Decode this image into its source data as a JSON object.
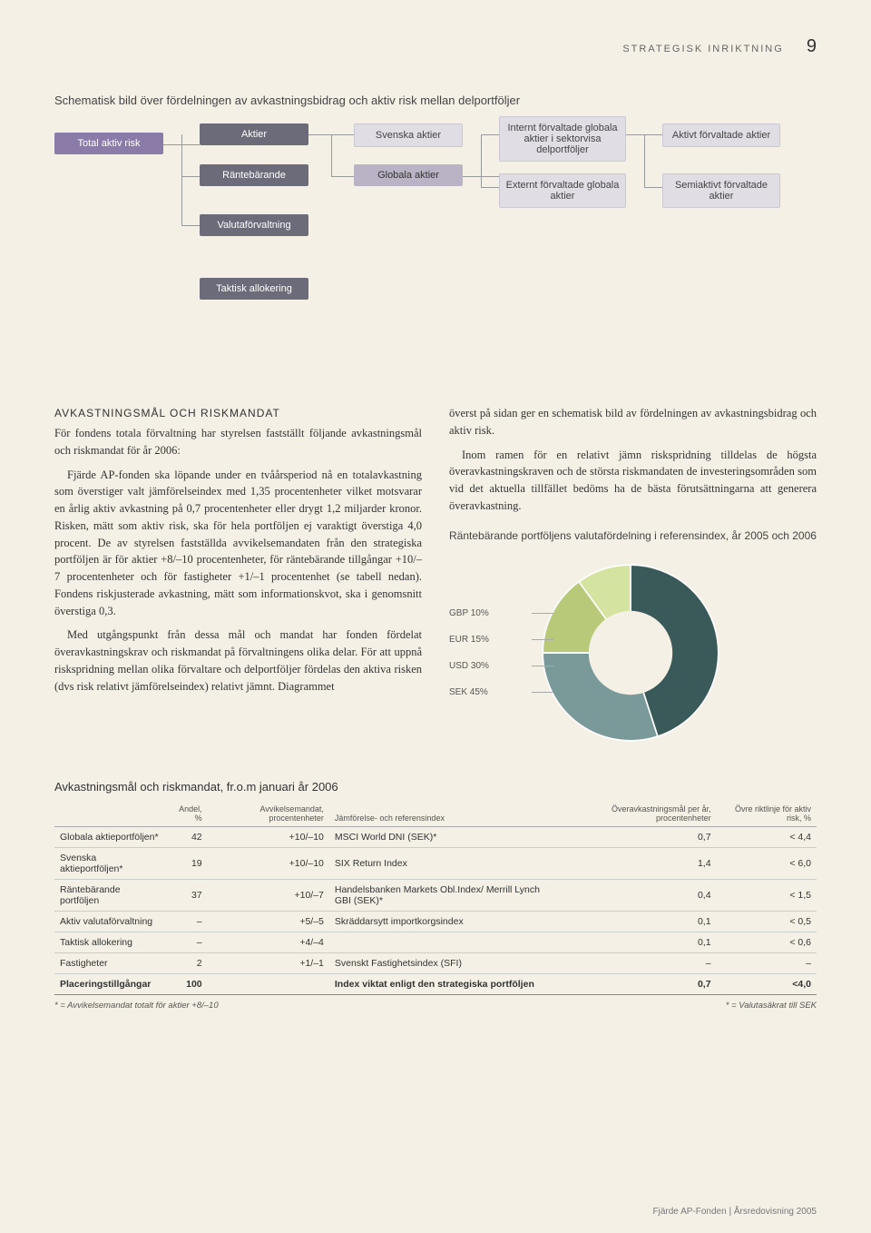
{
  "header": {
    "section": "STRATEGISK INRIKTNING",
    "page": "9"
  },
  "diagram": {
    "title": "Schematisk bild över fördelningen av avkastningsbidrag och aktiv risk mellan delportföljer",
    "boxes": {
      "total": "Total aktiv risk",
      "aktier": "Aktier",
      "rantebarande": "Räntebärande",
      "valuta": "Valutaförvaltning",
      "svenska": "Svenska aktier",
      "globala": "Globala aktier",
      "internt": "Internt förvaltade globala aktier i sektorvisa delportföljer",
      "externt": "Externt förvaltade globala aktier",
      "aktivt": "Aktivt förvaltade aktier",
      "semi": "Semiaktivt förvaltade aktier",
      "taktisk": "Taktisk allokering"
    }
  },
  "left": {
    "heading": "AVKASTNINGSMÅL OCH RISKMANDAT",
    "p1": "För fondens totala förvaltning har styrelsen fastställt följande avkastningsmål och riskmandat för år 2006:",
    "p2": "Fjärde AP-fonden ska löpande under en tvåårsperiod nå en totalavkastning som överstiger valt jämförelseindex med 1,35 procentenheter vilket motsvarar en årlig aktiv avkastning på 0,7 procentenheter eller drygt 1,2 miljarder kronor. Risken, mätt som aktiv risk, ska för hela portföljen ej varaktigt överstiga 4,0 procent. De av styrelsen fastställda avvikelsemandaten från den strategiska portföljen är för aktier +8/–10 procentenheter, för räntebärande tillgångar +10/–7 procentenheter och för fastigheter +1/–1 procentenhet (se tabell nedan). Fondens riskjusterade avkastning, mätt som informationskvot, ska i genomsnitt överstiga 0,3.",
    "p3": "Med utgångspunkt från dessa mål och mandat har fonden fördelat överavkastningskrav och riskmandat på förvaltningens olika delar. För att uppnå riskspridning mellan olika förvaltare och delportföljer fördelas den aktiva risken (dvs risk relativt jämförelseindex) relativt jämnt. Diagrammet"
  },
  "right": {
    "p1": "överst på sidan ger en schematisk bild av fördelningen av avkastningsbidrag och aktiv risk.",
    "p2": "Inom ramen för en relativt jämn riskspridning tilldelas de högsta överavkastningskraven och de största riskmandaten de investeringsområden som vid det aktuella tillfället bedöms ha de bästa förutsättningarna att generera överavkastning."
  },
  "pie": {
    "title": "Räntebärande portföljens valutafördelning i referensindex, år 2005 och 2006",
    "labels": [
      "GBP 10%",
      "EUR 15%",
      "USD 30%",
      "SEK 45%"
    ],
    "slices": [
      {
        "value": 45,
        "color": "#3a5a5a"
      },
      {
        "value": 30,
        "color": "#7a9a9a"
      },
      {
        "value": 15,
        "color": "#b8c97a"
      },
      {
        "value": 10,
        "color": "#d4e4a0"
      }
    ],
    "inner_color": "#f5f0e6"
  },
  "table": {
    "title": "Avkastningsmål och riskmandat, fr.o.m januari år 2006",
    "headers": [
      "",
      "Andel, %",
      "Avvikelsemandat, procentenheter",
      "Jämförelse- och referensindex",
      "Överavkastningsmål per år, procentenheter",
      "Övre riktlinje för aktiv risk, %"
    ],
    "rows": [
      [
        "Globala aktieportföljen*",
        "42",
        "+10/–10",
        "MSCI World DNI (SEK)*",
        "0,7",
        "< 4,4"
      ],
      [
        "Svenska aktieportföljen*",
        "19",
        "+10/–10",
        "SIX Return Index",
        "1,4",
        "< 6,0"
      ],
      [
        "Räntebärande portföljen",
        "37",
        "+10/–7",
        "Handelsbanken Markets Obl.Index/ Merrill Lynch GBI (SEK)*",
        "0,4",
        "< 1,5"
      ],
      [
        "Aktiv valutaförvaltning",
        "–",
        "+5/–5",
        "Skräddarsytt importkorgsindex",
        "0,1",
        "< 0,5"
      ],
      [
        "Taktisk allokering",
        "–",
        "+4/–4",
        "",
        "0,1",
        "< 0,6"
      ],
      [
        "Fastigheter",
        "2",
        "+1/–1",
        "Svenskt Fastighetsindex (SFI)",
        "–",
        "–"
      ]
    ],
    "total": [
      "Placeringstillgångar",
      "100",
      "",
      "Index viktat enligt den strategiska portföljen",
      "0,7",
      "<4,0"
    ],
    "foot1": "* = Avvikelsemandat totalt för aktier +8/–10",
    "foot2": "* = Valutasäkrat till SEK"
  },
  "footer": "Fjärde AP-Fonden | Årsredovisning 2005"
}
